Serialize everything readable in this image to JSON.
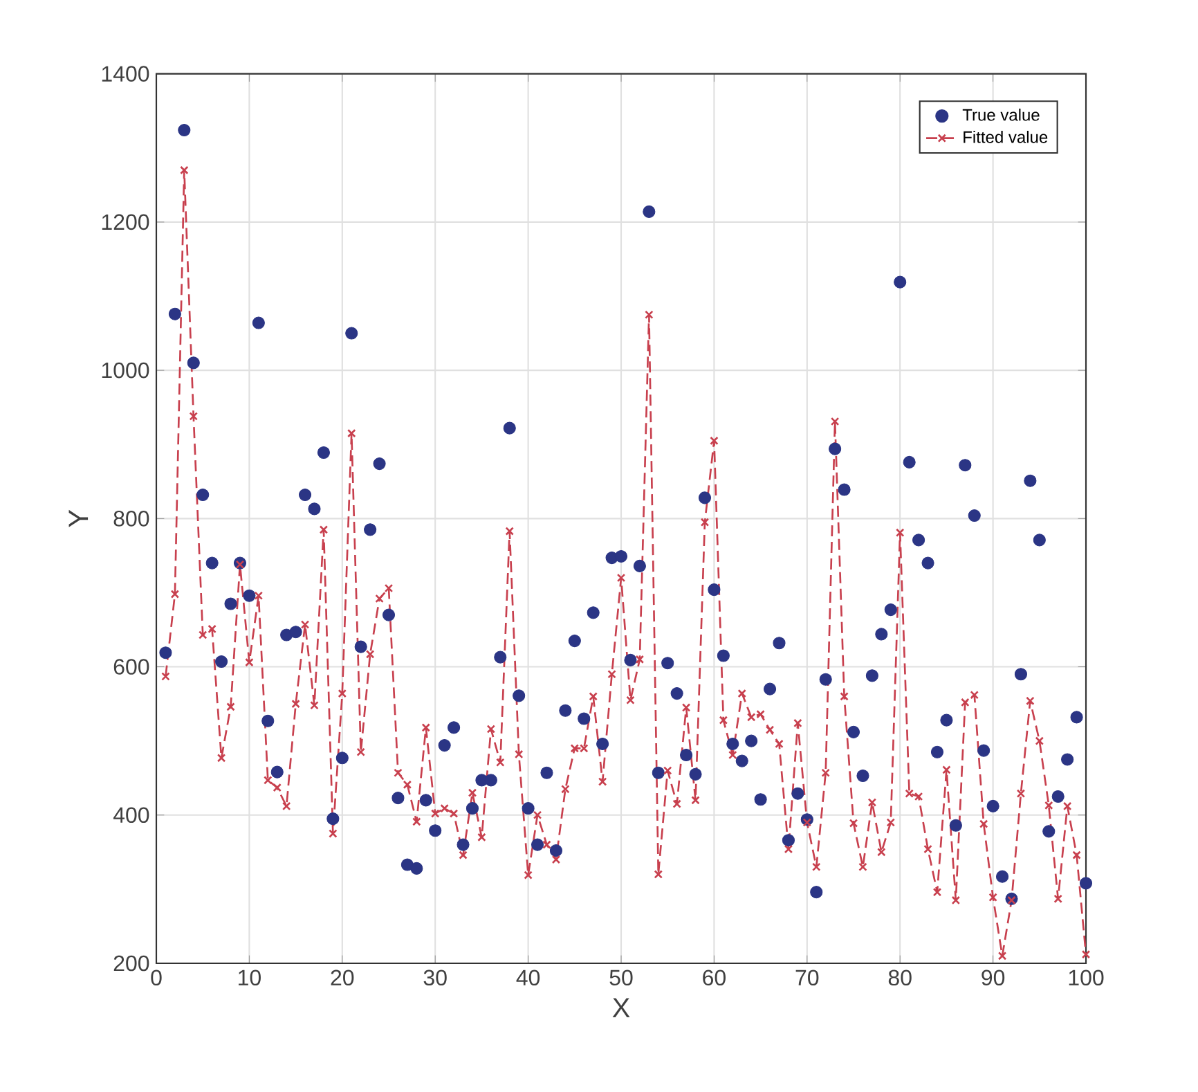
{
  "chart_data": {
    "type": "scatter",
    "xlabel": "X",
    "ylabel": "Y",
    "x": [
      1,
      2,
      3,
      4,
      5,
      6,
      7,
      8,
      9,
      10,
      11,
      12,
      13,
      14,
      15,
      16,
      17,
      18,
      19,
      20,
      21,
      22,
      23,
      24,
      25,
      26,
      27,
      28,
      29,
      30,
      31,
      32,
      33,
      34,
      35,
      36,
      37,
      38,
      39,
      40,
      41,
      42,
      43,
      44,
      45,
      46,
      47,
      48,
      49,
      50,
      51,
      52,
      53,
      54,
      55,
      56,
      57,
      58,
      59,
      60,
      61,
      62,
      63,
      64,
      65,
      66,
      67,
      68,
      69,
      70,
      71,
      72,
      73,
      74,
      75,
      76,
      77,
      78,
      79,
      80,
      81,
      82,
      83,
      84,
      85,
      86,
      87,
      88,
      89,
      90,
      91,
      92,
      93,
      94,
      95,
      96,
      97,
      98,
      99,
      100
    ],
    "series": [
      {
        "name": "True value",
        "marker": "circle",
        "color": "#2b3585",
        "values": [
          619,
          1076,
          1324,
          1010,
          832,
          740,
          607,
          685,
          740,
          696,
          1064,
          527,
          458,
          643,
          647,
          832,
          813,
          889,
          395,
          477,
          1050,
          627,
          785,
          874,
          670,
          423,
          333,
          328,
          420,
          379,
          494,
          518,
          360,
          409,
          447,
          447,
          613,
          922,
          561,
          409,
          360,
          457,
          352,
          541,
          635,
          530,
          673,
          496,
          747,
          749,
          609,
          736,
          1214,
          457,
          605,
          564,
          481,
          455,
          828,
          704,
          615,
          496,
          473,
          500,
          421,
          570,
          632,
          366,
          429,
          394,
          296,
          583,
          894,
          839,
          512,
          453,
          588,
          644,
          677,
          1119,
          876,
          771,
          740,
          485,
          528,
          386,
          872,
          804,
          487,
          412,
          317,
          287,
          590,
          851,
          771,
          378,
          425,
          475,
          532,
          308
        ]
      },
      {
        "name": "Fitted value",
        "type": "line",
        "marker": "cross",
        "line_style": "dashed",
        "color": "#c8404e",
        "values": [
          587,
          698,
          1270,
          938,
          643,
          651,
          477,
          546,
          738,
          606,
          696,
          447,
          437,
          412,
          550,
          657,
          548,
          785,
          375,
          564,
          915,
          485,
          617,
          692,
          706,
          457,
          441,
          391,
          518,
          402,
          409,
          402,
          346,
          430,
          370,
          516,
          471,
          783,
          482,
          319,
          400,
          360,
          340,
          435,
          490,
          490,
          560,
          445,
          590,
          720,
          555,
          610,
          1075,
          320,
          460,
          415,
          545,
          420,
          795,
          905,
          528,
          481,
          564,
          532,
          536,
          515,
          496,
          354,
          524,
          390,
          330,
          457,
          931,
          560,
          389,
          330,
          417,
          350,
          390,
          781,
          429,
          425,
          354,
          296,
          461,
          285,
          552,
          562,
          388,
          289,
          210,
          285,
          429,
          554,
          500,
          413,
          287,
          412,
          346,
          212
        ]
      }
    ],
    "xlim": [
      0,
      100
    ],
    "xticks": [
      0,
      10,
      20,
      30,
      40,
      50,
      60,
      70,
      80,
      90,
      100
    ],
    "ylim": [
      200,
      1400
    ],
    "yticks": [
      200,
      400,
      600,
      800,
      1000,
      1200,
      1400
    ],
    "grid": true,
    "legend": "top right"
  }
}
